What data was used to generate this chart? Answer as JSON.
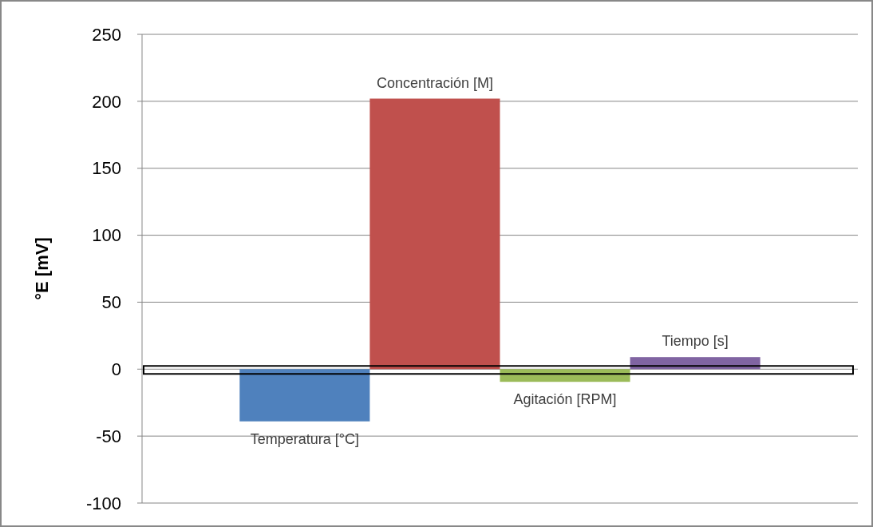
{
  "chart_data": {
    "type": "bar",
    "ylabel": "°E [mV]",
    "categories": [
      "Temperatura [°C]",
      "Concentración [M]",
      "Agitación [RPM]",
      "Tiempo [s]"
    ],
    "values": [
      -39,
      202,
      -9.5,
      9
    ],
    "colors": [
      "#4f81bd",
      "#c0504d",
      "#9bbb59",
      "#8064a2"
    ],
    "ylim": [
      -100,
      250
    ],
    "yticks": [
      -100,
      -50,
      0,
      50,
      100,
      150,
      200,
      250
    ],
    "grid": "y"
  }
}
